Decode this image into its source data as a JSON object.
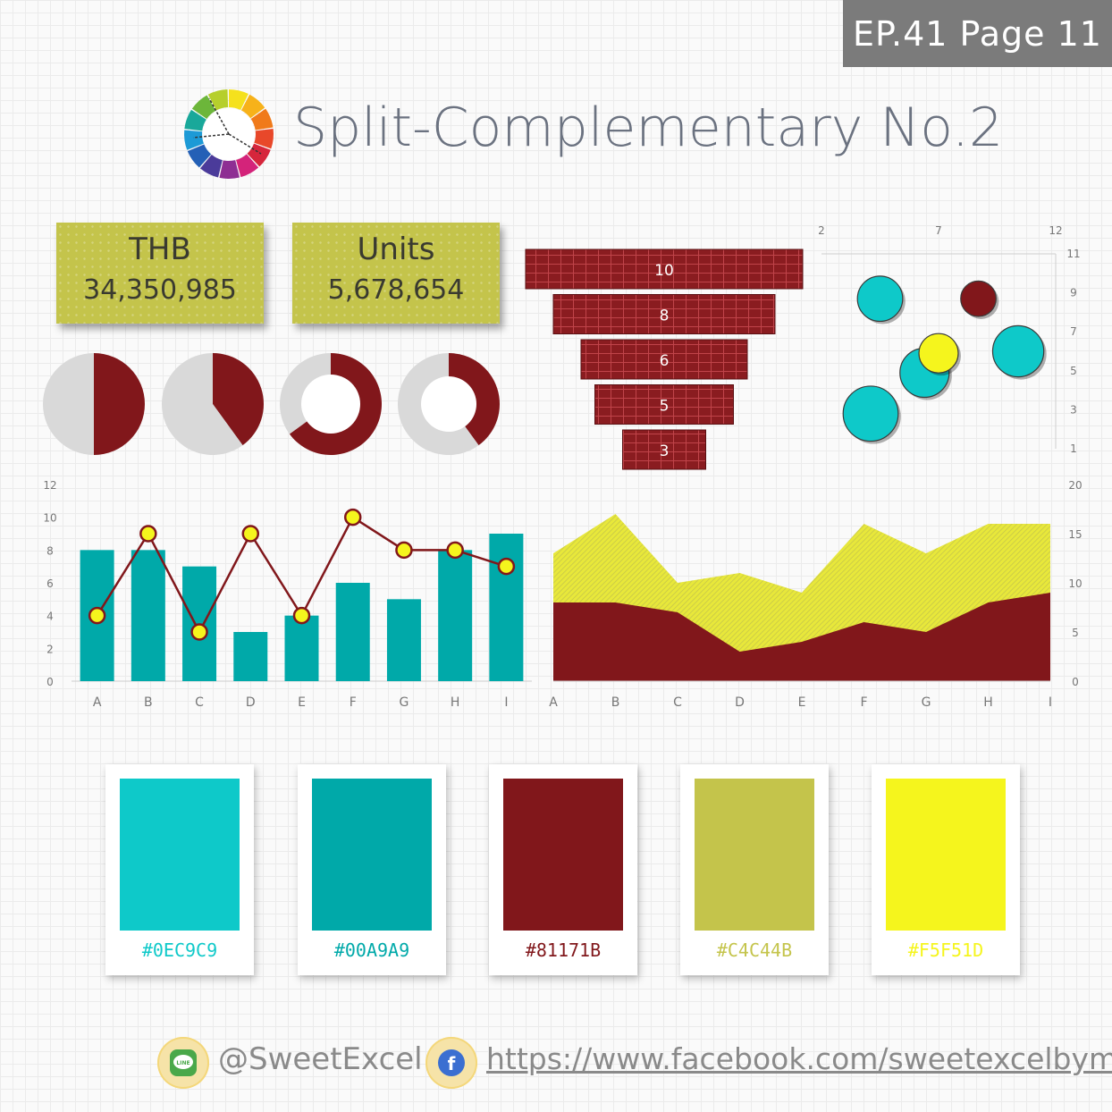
{
  "header": {
    "badge": "EP.41 Page 11",
    "title": "Split-Complementary No.2"
  },
  "kpis": [
    {
      "label": "THB",
      "value": "34,350,985"
    },
    {
      "label": "Units",
      "value": "5,678,654"
    }
  ],
  "colors": {
    "teal": "#0EC9C9",
    "dark_teal": "#00A9A9",
    "maroon": "#81171B",
    "olive": "#C4C44B",
    "yellow": "#F5F51D",
    "grey": "#D9D9D9"
  },
  "palette": [
    {
      "hex": "#0EC9C9",
      "color": "#0EC9C9"
    },
    {
      "hex": "#00A9A9",
      "color": "#00A9A9"
    },
    {
      "hex": "#81171B",
      "color": "#81171B"
    },
    {
      "hex": "#C4C44B",
      "color": "#C4C44B"
    },
    {
      "hex": "#F5F51D",
      "color": "#F5F51D"
    }
  ],
  "footer": {
    "line_handle": "@SweetExcel",
    "facebook_url": "https://www.facebook.com/sweetexcelbymd/",
    "line_icon_text": "LINE",
    "facebook_icon_text": "f"
  },
  "chart_data": [
    {
      "type": "pie",
      "name": "pie1",
      "values": [
        50,
        50
      ],
      "colors": [
        "#81171B",
        "#D9D9D9"
      ]
    },
    {
      "type": "pie",
      "name": "pie2",
      "values": [
        40,
        60
      ],
      "colors": [
        "#81171B",
        "#D9D9D9"
      ]
    },
    {
      "type": "doughnut",
      "name": "donut1",
      "values": [
        65,
        35
      ],
      "colors": [
        "#81171B",
        "#D9D9D9"
      ]
    },
    {
      "type": "doughnut",
      "name": "donut2",
      "values": [
        40,
        60
      ],
      "colors": [
        "#81171B",
        "#D9D9D9"
      ]
    },
    {
      "type": "funnel",
      "values": [
        10,
        8,
        6,
        5,
        3
      ],
      "labels": [
        "10",
        "8",
        "6",
        "5",
        "3"
      ]
    },
    {
      "type": "bubble",
      "x_ticks": [
        "2",
        "7",
        "12"
      ],
      "y_ticks": [
        "1",
        "3",
        "5",
        "7",
        "9",
        "11"
      ],
      "xlim": [
        2,
        12
      ],
      "ylim": [
        1,
        11
      ],
      "points": [
        {
          "x": 4.5,
          "y": 8.7,
          "size": 2.3,
          "color": "#0EC9C9"
        },
        {
          "x": 8.7,
          "y": 8.7,
          "size": 1.8,
          "color": "#81171B"
        },
        {
          "x": 6.4,
          "y": 4.9,
          "size": 2.5,
          "color": "#0EC9C9"
        },
        {
          "x": 7.0,
          "y": 5.9,
          "size": 2.0,
          "color": "#F5F51D"
        },
        {
          "x": 10.4,
          "y": 6.0,
          "size": 2.6,
          "color": "#0EC9C9"
        },
        {
          "x": 4.1,
          "y": 2.8,
          "size": 2.8,
          "color": "#0EC9C9"
        }
      ]
    },
    {
      "type": "bar+line",
      "categories": [
        "A",
        "B",
        "C",
        "D",
        "E",
        "F",
        "G",
        "H",
        "I"
      ],
      "y_ticks": [
        "0",
        "2",
        "4",
        "6",
        "8",
        "10",
        "12"
      ],
      "ylim": [
        0,
        12
      ],
      "series": [
        {
          "type": "bar",
          "values": [
            8,
            8,
            7,
            3,
            4,
            6,
            5,
            8,
            9
          ],
          "color": "#00A9A9"
        },
        {
          "type": "line",
          "values": [
            4,
            9,
            3,
            9,
            4,
            10,
            8,
            8,
            7
          ],
          "color": "#81171B",
          "marker_color": "#F5F51D"
        }
      ]
    },
    {
      "type": "area",
      "stacked": true,
      "categories": [
        "A",
        "B",
        "C",
        "D",
        "E",
        "F",
        "G",
        "H",
        "I"
      ],
      "y_ticks": [
        "0",
        "5",
        "10",
        "15",
        "20"
      ],
      "ylim": [
        0,
        20
      ],
      "series": [
        {
          "values": [
            8,
            8,
            7,
            3,
            4,
            6,
            5,
            8,
            9
          ],
          "color": "#81171B"
        },
        {
          "values": [
            5,
            9,
            3,
            8,
            5,
            10,
            8,
            8,
            7
          ],
          "color": "#F5F51D"
        }
      ]
    }
  ]
}
